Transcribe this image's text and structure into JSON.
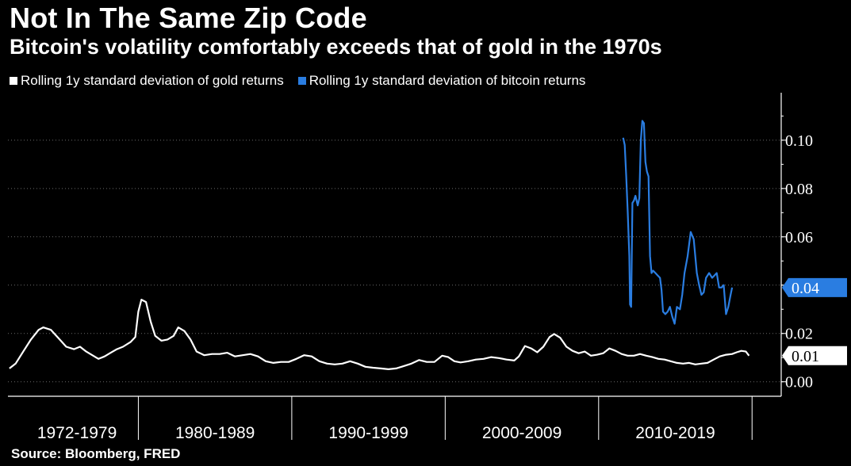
{
  "header": {
    "title": "Not In The Same Zip Code",
    "subtitle": "Bitcoin's volatility comfortably exceeds that of gold in the 1970s"
  },
  "footer": {
    "source": "Source: Bloomberg, FRED"
  },
  "colors": {
    "background": "#000000",
    "gold": "#ffffff",
    "bitcoin": "#2a7de1",
    "axis": "#ffffff"
  },
  "chart_data": {
    "type": "line",
    "title": "Not In The Same Zip Code",
    "subtitle": "Bitcoin's volatility comfortably exceeds that of gold in the 1970s",
    "xlabel": "",
    "ylabel": "",
    "ylim": [
      -0.006,
      0.118
    ],
    "xlim": [
      1971.5,
      2021.9
    ],
    "y_ticks": [
      0.0,
      0.02,
      0.04,
      0.06,
      0.08,
      0.1
    ],
    "y_tick_labels": [
      "0.00",
      "0.02",
      "",
      "0.06",
      "0.08",
      "0.10"
    ],
    "x_categories": [
      {
        "label": "1972-1979",
        "start": 1972,
        "end": 1980
      },
      {
        "label": "1980-1989",
        "start": 1980,
        "end": 1990
      },
      {
        "label": "1990-1999",
        "start": 1990,
        "end": 2000
      },
      {
        "label": "2000-2009",
        "start": 2000,
        "end": 2010
      },
      {
        "label": "2010-2019",
        "start": 2010,
        "end": 2020
      }
    ],
    "grid": "horizontal dashed",
    "legend_position": "top-left",
    "last_value_badges": [
      {
        "series": "Rolling 1y standard deviation of bitcoin returns",
        "label": "0.04",
        "color": "#2a7de1"
      },
      {
        "series": "Rolling 1y standard deviation of gold returns",
        "label": "0.01",
        "color": "#ffffff"
      }
    ],
    "series": [
      {
        "name": "Rolling 1y standard deviation of gold returns",
        "color": "#ffffff",
        "points": [
          [
            1971.6,
            0.0055
          ],
          [
            1972.0,
            0.0075
          ],
          [
            1972.5,
            0.0125
          ],
          [
            1973.0,
            0.0175
          ],
          [
            1973.5,
            0.0215
          ],
          [
            1973.8,
            0.0225
          ],
          [
            1974.3,
            0.0215
          ],
          [
            1974.8,
            0.018
          ],
          [
            1975.3,
            0.0145
          ],
          [
            1975.8,
            0.0135
          ],
          [
            1976.2,
            0.0145
          ],
          [
            1976.6,
            0.0125
          ],
          [
            1977.0,
            0.011
          ],
          [
            1977.4,
            0.0095
          ],
          [
            1977.8,
            0.0105
          ],
          [
            1978.2,
            0.012
          ],
          [
            1978.6,
            0.0135
          ],
          [
            1979.0,
            0.0145
          ],
          [
            1979.5,
            0.0165
          ],
          [
            1979.8,
            0.0185
          ],
          [
            1980.0,
            0.029
          ],
          [
            1980.2,
            0.034
          ],
          [
            1980.5,
            0.033
          ],
          [
            1980.8,
            0.025
          ],
          [
            1981.1,
            0.019
          ],
          [
            1981.5,
            0.017
          ],
          [
            1981.9,
            0.0175
          ],
          [
            1982.3,
            0.019
          ],
          [
            1982.6,
            0.0225
          ],
          [
            1983.0,
            0.021
          ],
          [
            1983.4,
            0.0175
          ],
          [
            1983.8,
            0.0125
          ],
          [
            1984.3,
            0.011
          ],
          [
            1984.8,
            0.0115
          ],
          [
            1985.3,
            0.0115
          ],
          [
            1985.8,
            0.012
          ],
          [
            1986.3,
            0.0105
          ],
          [
            1986.8,
            0.011
          ],
          [
            1987.3,
            0.0115
          ],
          [
            1987.8,
            0.0105
          ],
          [
            1988.3,
            0.0085
          ],
          [
            1988.8,
            0.0078
          ],
          [
            1989.3,
            0.0082
          ],
          [
            1989.8,
            0.0082
          ],
          [
            1990.3,
            0.0095
          ],
          [
            1990.8,
            0.011
          ],
          [
            1991.3,
            0.0105
          ],
          [
            1991.8,
            0.0085
          ],
          [
            1992.3,
            0.0075
          ],
          [
            1992.8,
            0.0072
          ],
          [
            1993.3,
            0.0075
          ],
          [
            1993.8,
            0.0085
          ],
          [
            1994.3,
            0.0075
          ],
          [
            1994.8,
            0.0062
          ],
          [
            1995.3,
            0.0058
          ],
          [
            1995.8,
            0.0055
          ],
          [
            1996.3,
            0.0052
          ],
          [
            1996.8,
            0.0055
          ],
          [
            1997.3,
            0.0065
          ],
          [
            1997.8,
            0.0075
          ],
          [
            1998.3,
            0.009
          ],
          [
            1998.8,
            0.0082
          ],
          [
            1999.3,
            0.0082
          ],
          [
            1999.8,
            0.0108
          ],
          [
            2000.2,
            0.0102
          ],
          [
            2000.6,
            0.0085
          ],
          [
            2001.0,
            0.008
          ],
          [
            2001.5,
            0.0085
          ],
          [
            2002.0,
            0.0092
          ],
          [
            2002.5,
            0.0095
          ],
          [
            2003.0,
            0.0102
          ],
          [
            2003.5,
            0.0098
          ],
          [
            2004.0,
            0.0092
          ],
          [
            2004.5,
            0.0088
          ],
          [
            2004.8,
            0.0105
          ],
          [
            2005.2,
            0.0148
          ],
          [
            2005.6,
            0.0138
          ],
          [
            2006.0,
            0.0122
          ],
          [
            2006.4,
            0.0145
          ],
          [
            2006.8,
            0.0185
          ],
          [
            2007.1,
            0.0198
          ],
          [
            2007.5,
            0.0182
          ],
          [
            2007.9,
            0.0145
          ],
          [
            2008.3,
            0.0128
          ],
          [
            2008.7,
            0.0118
          ],
          [
            2009.1,
            0.0125
          ],
          [
            2009.5,
            0.0108
          ],
          [
            2009.9,
            0.0112
          ],
          [
            2010.3,
            0.0118
          ],
          [
            2010.7,
            0.0138
          ],
          [
            2011.1,
            0.0128
          ],
          [
            2011.5,
            0.0115
          ],
          [
            2011.9,
            0.0108
          ],
          [
            2012.3,
            0.0108
          ],
          [
            2012.7,
            0.0115
          ],
          [
            2013.1,
            0.0108
          ],
          [
            2013.5,
            0.0102
          ],
          [
            2013.9,
            0.0095
          ],
          [
            2014.3,
            0.0092
          ],
          [
            2014.7,
            0.0085
          ],
          [
            2015.1,
            0.0078
          ],
          [
            2015.5,
            0.0075
          ],
          [
            2015.9,
            0.0078
          ],
          [
            2016.3,
            0.0072
          ],
          [
            2016.7,
            0.0075
          ],
          [
            2017.1,
            0.0078
          ],
          [
            2017.5,
            0.0092
          ],
          [
            2017.9,
            0.0105
          ],
          [
            2018.3,
            0.0112
          ],
          [
            2018.7,
            0.0115
          ],
          [
            2019.0,
            0.0122
          ],
          [
            2019.3,
            0.0128
          ],
          [
            2019.6,
            0.0125
          ],
          [
            2019.8,
            0.0108
          ]
        ]
      },
      {
        "name": "Rolling 1y standard deviation of bitcoin returns",
        "color": "#2a7de1",
        "points": [
          [
            2011.6,
            0.101
          ],
          [
            2011.7,
            0.098
          ],
          [
            2011.8,
            0.085
          ],
          [
            2011.9,
            0.07
          ],
          [
            2012.0,
            0.052
          ],
          [
            2012.05,
            0.032
          ],
          [
            2012.12,
            0.031
          ],
          [
            2012.2,
            0.074
          ],
          [
            2012.3,
            0.075
          ],
          [
            2012.4,
            0.077
          ],
          [
            2012.55,
            0.073
          ],
          [
            2012.65,
            0.076
          ],
          [
            2012.75,
            0.1
          ],
          [
            2012.85,
            0.108
          ],
          [
            2012.95,
            0.107
          ],
          [
            2013.05,
            0.091
          ],
          [
            2013.15,
            0.087
          ],
          [
            2013.25,
            0.085
          ],
          [
            2013.35,
            0.052
          ],
          [
            2013.45,
            0.045
          ],
          [
            2013.55,
            0.046
          ],
          [
            2013.7,
            0.045
          ],
          [
            2013.85,
            0.044
          ],
          [
            2014.0,
            0.043
          ],
          [
            2014.1,
            0.038
          ],
          [
            2014.2,
            0.029
          ],
          [
            2014.35,
            0.028
          ],
          [
            2014.5,
            0.029
          ],
          [
            2014.65,
            0.031
          ],
          [
            2014.8,
            0.027
          ],
          [
            2014.95,
            0.024
          ],
          [
            2015.1,
            0.031
          ],
          [
            2015.3,
            0.03
          ],
          [
            2015.45,
            0.036
          ],
          [
            2015.6,
            0.045
          ],
          [
            2015.8,
            0.052
          ],
          [
            2016.0,
            0.062
          ],
          [
            2016.2,
            0.059
          ],
          [
            2016.4,
            0.045
          ],
          [
            2016.55,
            0.04
          ],
          [
            2016.7,
            0.036
          ],
          [
            2016.85,
            0.037
          ],
          [
            2017.0,
            0.043
          ],
          [
            2017.2,
            0.045
          ],
          [
            2017.4,
            0.043
          ],
          [
            2017.55,
            0.044
          ],
          [
            2017.7,
            0.045
          ],
          [
            2017.85,
            0.039
          ],
          [
            2018.0,
            0.039
          ],
          [
            2018.15,
            0.04
          ],
          [
            2018.3,
            0.028
          ],
          [
            2018.45,
            0.031
          ],
          [
            2018.6,
            0.036
          ],
          [
            2018.7,
            0.039
          ]
        ]
      }
    ]
  },
  "legend": {
    "items": [
      {
        "label": "Rolling 1y standard deviation of gold returns",
        "color": "#ffffff"
      },
      {
        "label": "Rolling 1y standard deviation of bitcoin returns",
        "color": "#2a7de1"
      }
    ]
  }
}
